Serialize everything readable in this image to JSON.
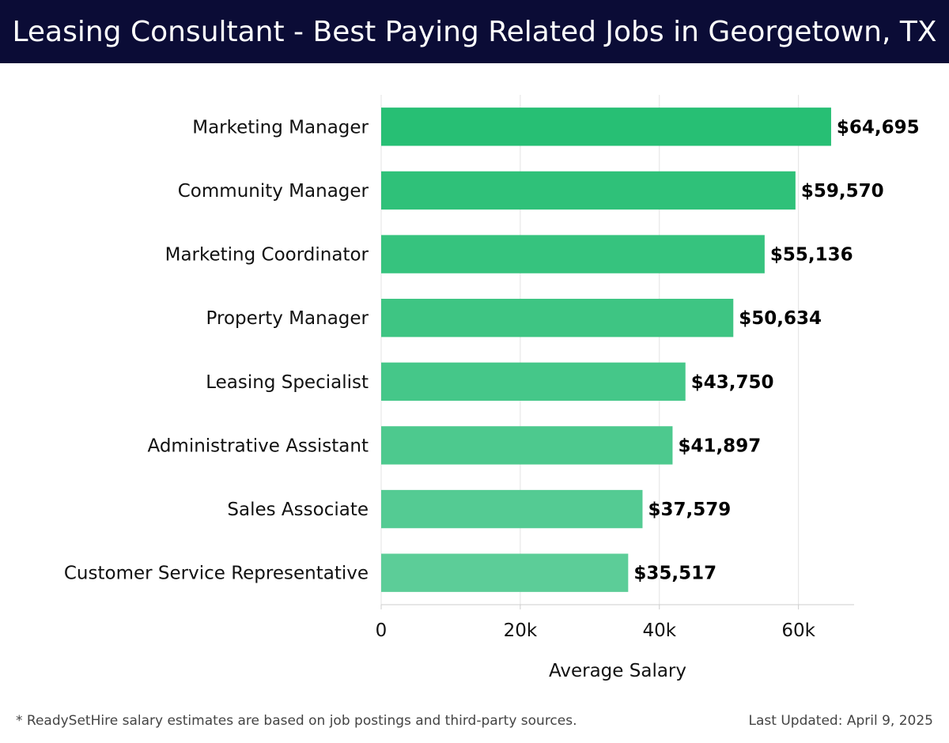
{
  "header": {
    "title": "Leasing Consultant - Best Paying Related Jobs in Georgetown, TX"
  },
  "chart_data": {
    "type": "bar",
    "orientation": "horizontal",
    "title": "Leasing Consultant - Best Paying Related Jobs in Georgetown, TX",
    "categories": [
      "Marketing Manager",
      "Community Manager",
      "Marketing Coordinator",
      "Property Manager",
      "Leasing Specialist",
      "Administrative Assistant",
      "Sales Associate",
      "Customer Service Representative"
    ],
    "values": [
      64695,
      59570,
      55136,
      50634,
      43750,
      41897,
      37579,
      35517
    ],
    "value_labels": [
      "$64,695",
      "$59,570",
      "$55,136",
      "$50,634",
      "$43,750",
      "$41,897",
      "$37,579",
      "$35,517"
    ],
    "xlabel": "Average Salary",
    "ylabel": "",
    "xlim": [
      0,
      68000
    ],
    "xticks": [
      0,
      20000,
      40000,
      60000
    ],
    "xtick_labels": [
      "0",
      "20k",
      "40k",
      "60k"
    ],
    "grid": true,
    "colors": {
      "bar_top": "#27bf74",
      "bar_bottom": "#5ccd98",
      "grid": "#e3e3e3",
      "axis": "#cccccc"
    }
  },
  "footer": {
    "note": "* ReadySetHire salary estimates are based on job postings and third-party sources.",
    "updated": "Last Updated: April 9, 2025"
  }
}
